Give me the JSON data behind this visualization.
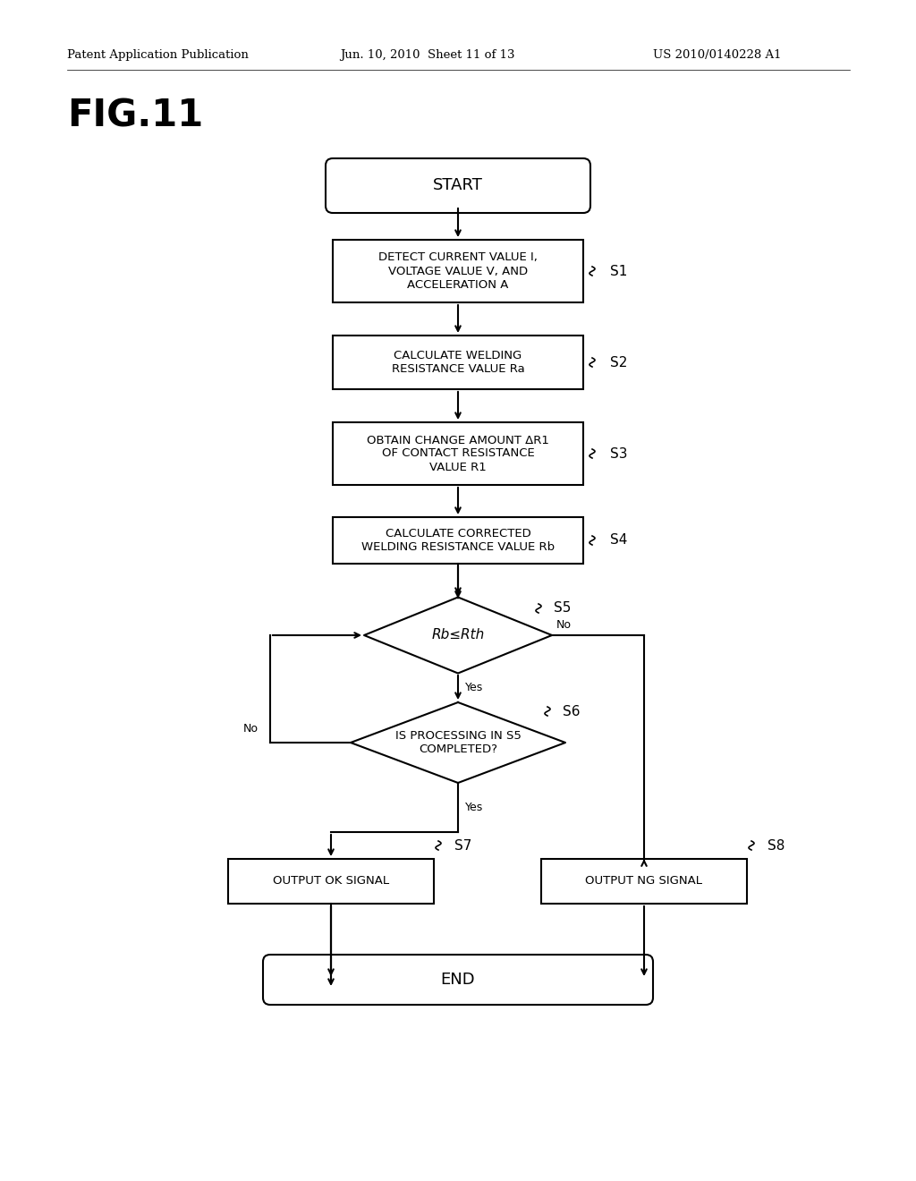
{
  "title": "FIG.11",
  "header_left": "Patent Application Publication",
  "header_center": "Jun. 10, 2010  Sheet 11 of 13",
  "header_right": "US 2010/0140228 A1",
  "bg_color": "#ffffff",
  "start_label": "START",
  "end_label": "END",
  "s1_text": "DETECT CURRENT VALUE I,\nVOLTAGE VALUE V, AND\nACCELERATION A",
  "s2_text": "CALCULATE WELDING\nRESISTANCE VALUE Ra",
  "s3_text": "OBTAIN CHANGE AMOUNT ΔR1\nOF CONTACT RESISTANCE\nVALUE R1",
  "s4_text": "CALCULATE CORRECTED\nWELDING RESISTANCE VALUE Rb",
  "s5_text": "Rb≤Rth",
  "s6_text": "IS PROCESSING IN S5\nCOMPLETED?",
  "s7_text": "OUTPUT OK SIGNAL",
  "s8_text": "OUTPUT NG SIGNAL"
}
